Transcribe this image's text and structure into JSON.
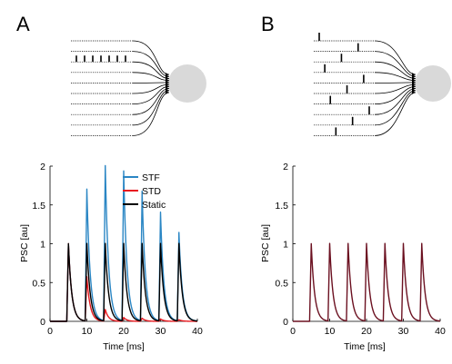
{
  "panels": {
    "a": {
      "letter": "A"
    },
    "b": {
      "letter": "B"
    }
  },
  "colors": {
    "stf": "#2a86c4",
    "std": "#e8191f",
    "static": "#000000",
    "static_b": "#6b1020",
    "neuron": "#d9d9d9"
  },
  "schematic_a": {
    "input_lines": 10,
    "burst_line_index": 2,
    "burst_spike_count": 7
  },
  "schematic_b": {
    "input_lines": 10,
    "spike_line_order": [
      0,
      1,
      2,
      3,
      4,
      5,
      6,
      7,
      8,
      9
    ]
  },
  "chart_data": [
    {
      "type": "line",
      "panel": "A",
      "xlabel": "Time [ms]",
      "ylabel": "PSC [au]",
      "xlim": [
        0,
        40
      ],
      "ylim": [
        0,
        2
      ],
      "xticks": [
        "0",
        "10",
        "20",
        "30",
        "40"
      ],
      "yticks": [
        "0",
        "0.5",
        "1",
        "1.5",
        "2"
      ],
      "legend_position": "top-right",
      "spike_times": [
        5,
        10,
        15,
        20,
        25,
        30,
        35
      ],
      "decay_ms": 0.9,
      "series": [
        {
          "name": "STF",
          "color": "#2a86c4",
          "peaks": [
            1.0,
            1.7,
            2.0,
            1.93,
            1.67,
            1.4,
            1.14
          ]
        },
        {
          "name": "STD",
          "color": "#e8191f",
          "peaks": [
            1.0,
            0.57,
            0.15,
            0.05,
            0.04,
            0.03,
            0.02
          ]
        },
        {
          "name": "Static",
          "color": "#000000",
          "peaks": [
            1.0,
            1.0,
            1.0,
            1.0,
            1.0,
            1.0,
            1.0
          ]
        }
      ]
    },
    {
      "type": "line",
      "panel": "B",
      "xlabel": "Time [ms]",
      "ylabel": "PSC [au]",
      "xlim": [
        0,
        40
      ],
      "ylim": [
        0,
        2
      ],
      "xticks": [
        "0",
        "10",
        "20",
        "30",
        "40"
      ],
      "yticks": [
        "0",
        "0.5",
        "1",
        "1.5",
        "2"
      ],
      "spike_times": [
        5,
        10,
        15,
        20,
        25,
        30,
        35
      ],
      "decay_ms": 0.9,
      "series": [
        {
          "color": "#6b1020",
          "peaks": [
            1.0,
            1.0,
            1.0,
            1.0,
            1.0,
            1.0,
            1.0
          ]
        }
      ]
    }
  ]
}
